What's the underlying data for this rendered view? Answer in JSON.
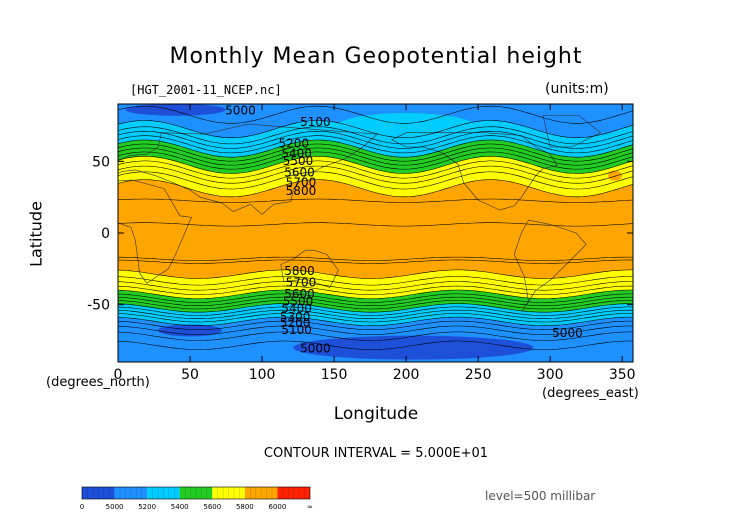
{
  "colors": {
    "band_4900": "#1e4fd9",
    "band_5000": "#1e90ff",
    "band_5200": "#00ccff",
    "band_5400": "#22cc22",
    "band_5600": "#ffff00",
    "band_5800": "#ffa500",
    "band_6000": "#ff2200",
    "contour": "#000000",
    "coast": "#333333"
  },
  "chart_data": {
    "type": "contour-map",
    "title": "Monthly Mean Geopotential height",
    "file_label": "[HGT_2001-11_NCEP.nc]",
    "units_label": "(units:m)",
    "xlabel": "Longitude",
    "ylabel": "Latitude",
    "x_unit_label": "(degrees_east)",
    "y_unit_label": "(degrees_north)",
    "xlim": [
      0,
      357.5
    ],
    "ylim": [
      -90,
      90
    ],
    "x_ticks": [
      0,
      50,
      100,
      150,
      200,
      250,
      300,
      350
    ],
    "y_ticks": [
      50,
      0,
      -50
    ],
    "contour_interval": "CONTOUR INTERVAL = 5.000E+01",
    "level": "level=500 millibar",
    "colorbar": {
      "tick_labels": [
        "0",
        "5000",
        "5200",
        "5400",
        "5600",
        "5800",
        "6000",
        "∞"
      ],
      "bins": [
        {
          "from": "0",
          "to": "5000",
          "color": "#1e4fd9"
        },
        {
          "from": "5000",
          "to": "5200",
          "color": "#1e90ff"
        },
        {
          "from": "5200",
          "to": "5400",
          "color": "#00ccff"
        },
        {
          "from": "5400",
          "to": "5600",
          "color": "#22cc22"
        },
        {
          "from": "5600",
          "to": "5800",
          "color": "#ffff00"
        },
        {
          "from": "5800",
          "to": "6000",
          "color": "#ffa500"
        },
        {
          "from": "6000",
          "to": "∞",
          "color": "#ff2200"
        }
      ]
    },
    "zonal_profile": {
      "lat": [
        90,
        85,
        80,
        75,
        70,
        65,
        60,
        55,
        50,
        45,
        40,
        35,
        30,
        25,
        20,
        15,
        10,
        5,
        0,
        -5,
        -10,
        -15,
        -20,
        -25,
        -30,
        -35,
        -40,
        -45,
        -50,
        -55,
        -60,
        -65,
        -70,
        -75,
        -80,
        -85,
        -90
      ],
      "height": [
        5120,
        5140,
        5160,
        5180,
        5220,
        5300,
        5380,
        5470,
        5560,
        5640,
        5710,
        5770,
        5810,
        5840,
        5860,
        5870,
        5870,
        5870,
        5870,
        5870,
        5870,
        5860,
        5850,
        5830,
        5790,
        5730,
        5650,
        5560,
        5450,
        5340,
        5230,
        5140,
        5070,
        5020,
        4990,
        4980,
        4980
      ]
    },
    "contour_labels": [
      {
        "text": "5000",
        "lon": 85,
        "lat": 85
      },
      {
        "text": "5100",
        "lon": 137,
        "lat": 77
      },
      {
        "text": "5200",
        "lon": 122,
        "lat": 62
      },
      {
        "text": "5400",
        "lon": 124,
        "lat": 55
      },
      {
        "text": "5500",
        "lon": 125,
        "lat": 50
      },
      {
        "text": "5600",
        "lon": 126,
        "lat": 42
      },
      {
        "text": "5700",
        "lon": 127,
        "lat": 35
      },
      {
        "text": "5800",
        "lon": 127,
        "lat": 29
      },
      {
        "text": "5800",
        "lon": 126,
        "lat": -27
      },
      {
        "text": "5700",
        "lon": 127,
        "lat": -35
      },
      {
        "text": "5600",
        "lon": 126,
        "lat": -43
      },
      {
        "text": "5500",
        "lon": 125,
        "lat": -48
      },
      {
        "text": "5400",
        "lon": 124,
        "lat": -53
      },
      {
        "text": "5300",
        "lon": 123,
        "lat": -59
      },
      {
        "text": "5200",
        "lon": 123,
        "lat": -63
      },
      {
        "text": "5100",
        "lon": 124,
        "lat": -68
      },
      {
        "text": "5000",
        "lon": 137,
        "lat": -81
      },
      {
        "text": "5000",
        "lon": 312,
        "lat": -70
      }
    ]
  }
}
